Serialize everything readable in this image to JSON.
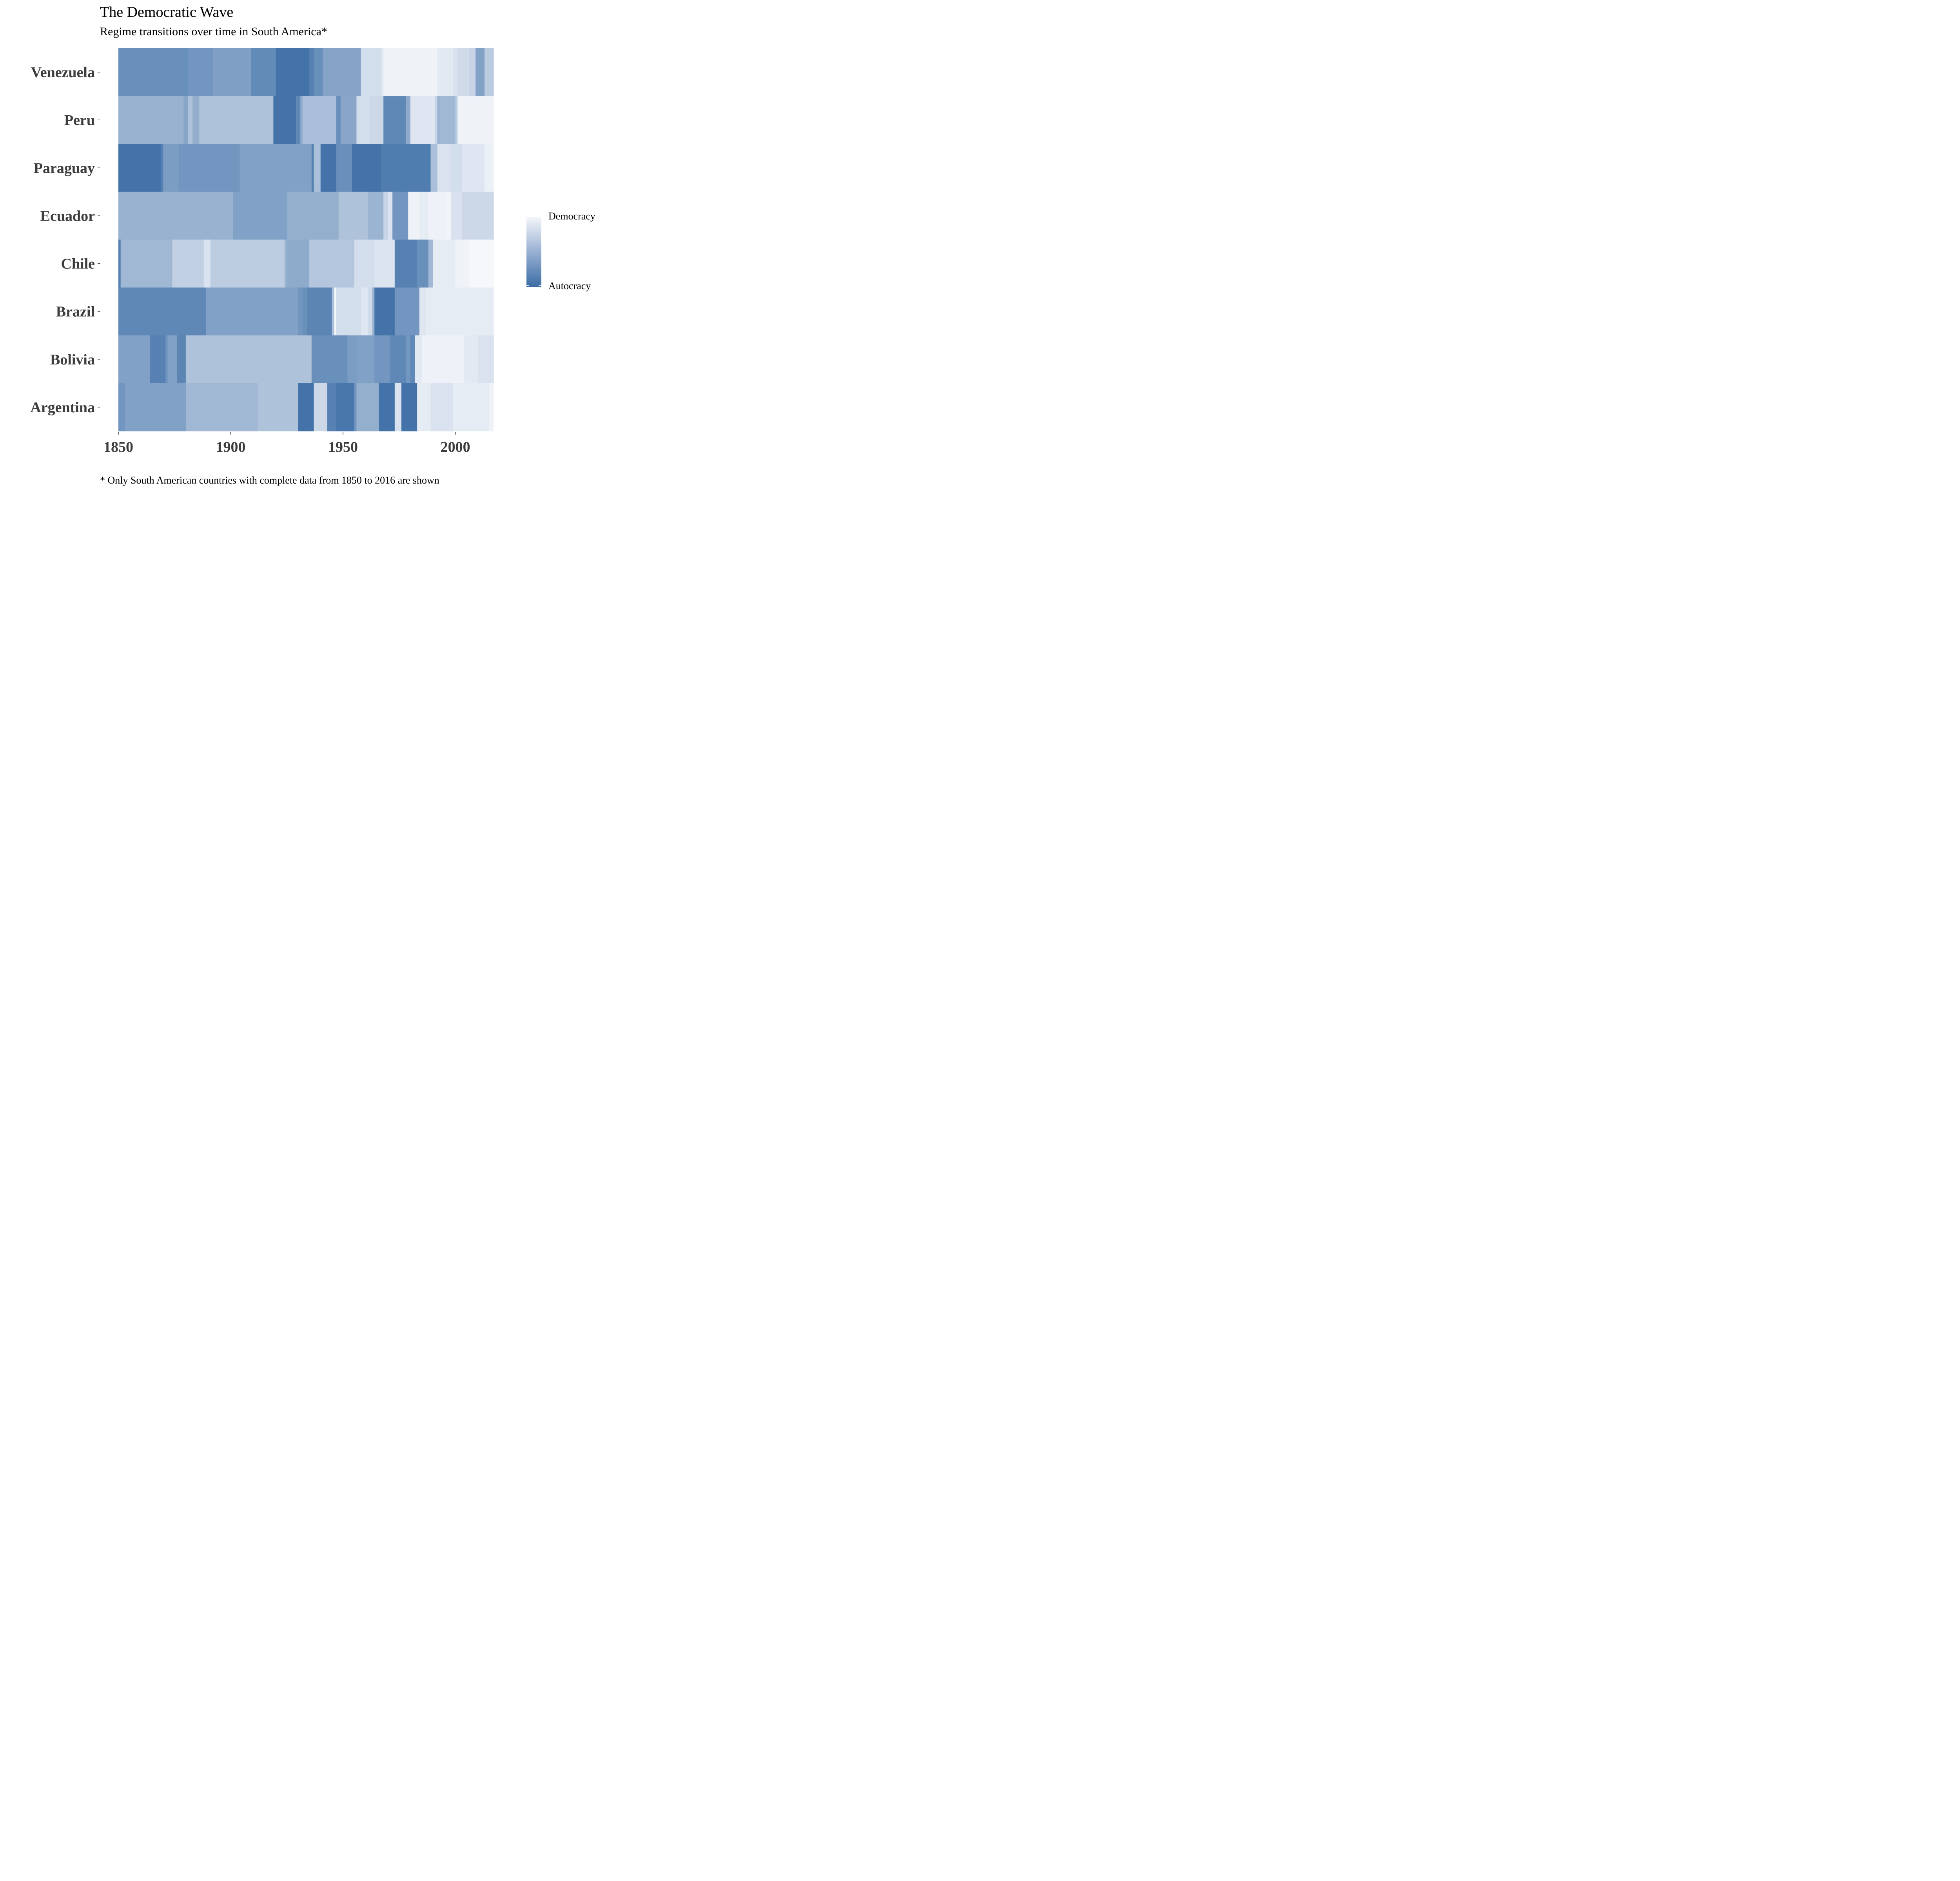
{
  "chart_data": {
    "type": "heatmap",
    "title": "The Democratic Wave",
    "subtitle": "Regime transitions over time in South America*",
    "caption": "* Only South American countries with complete data from 1850 to 2016 are shown",
    "xlabel": "",
    "ylabel": "",
    "xlim": [
      1850,
      2017
    ],
    "x_ticks": [
      1850,
      1900,
      1950,
      2000
    ],
    "grid": false,
    "legend": {
      "position": "right",
      "high_label": "Democracy",
      "low_label": "Autocracy",
      "colors": {
        "low": "#3a6ca5",
        "high": "#f5f7fb"
      }
    },
    "value_scale": "0 = Autocracy, 1 = Democracy",
    "countries": [
      "Venezuela",
      "Peru",
      "Paraguay",
      "Ecuador",
      "Chile",
      "Brazil",
      "Bolivia",
      "Argentina"
    ],
    "series": [
      {
        "name": "Venezuela",
        "segments": [
          [
            1850,
            1881,
            0.25
          ],
          [
            1881,
            1892,
            0.3
          ],
          [
            1892,
            1909,
            0.37
          ],
          [
            1909,
            1920,
            0.22
          ],
          [
            1920,
            1935,
            0.05
          ],
          [
            1935,
            1937,
            0.15
          ],
          [
            1937,
            1941,
            0.25
          ],
          [
            1941,
            1958,
            0.4
          ],
          [
            1958,
            1967,
            0.82
          ],
          [
            1967,
            1968,
            0.88
          ],
          [
            1968,
            1992,
            0.97
          ],
          [
            1992,
            1999,
            0.9
          ],
          [
            1999,
            2001,
            0.85
          ],
          [
            2001,
            2006,
            0.8
          ],
          [
            2006,
            2009,
            0.75
          ],
          [
            2009,
            2013,
            0.38
          ],
          [
            2013,
            2017,
            0.68
          ]
        ]
      },
      {
        "name": "Peru",
        "segments": [
          [
            1850,
            1879,
            0.5
          ],
          [
            1879,
            1881,
            0.42
          ],
          [
            1881,
            1883,
            0.62
          ],
          [
            1883,
            1886,
            0.48
          ],
          [
            1886,
            1919,
            0.62
          ],
          [
            1919,
            1929,
            0.05
          ],
          [
            1929,
            1931,
            0.2
          ],
          [
            1931,
            1932,
            0.45
          ],
          [
            1932,
            1947,
            0.6
          ],
          [
            1947,
            1949,
            0.25
          ],
          [
            1949,
            1956,
            0.42
          ],
          [
            1956,
            1962,
            0.82
          ],
          [
            1962,
            1963,
            0.78
          ],
          [
            1963,
            1968,
            0.78
          ],
          [
            1968,
            1978,
            0.2
          ],
          [
            1978,
            1980,
            0.45
          ],
          [
            1980,
            1991,
            0.88
          ],
          [
            1991,
            1992,
            0.75
          ],
          [
            1992,
            1993,
            0.5
          ],
          [
            1993,
            2000,
            0.55
          ],
          [
            2000,
            2001,
            0.7
          ],
          [
            2001,
            2017,
            0.97
          ]
        ]
      },
      {
        "name": "Paraguay",
        "segments": [
          [
            1850,
            1869,
            0.05
          ],
          [
            1869,
            1870,
            0.15
          ],
          [
            1870,
            1877,
            0.35
          ],
          [
            1877,
            1904,
            0.3
          ],
          [
            1904,
            1936,
            0.38
          ],
          [
            1936,
            1937,
            0.15
          ],
          [
            1937,
            1940,
            0.6
          ],
          [
            1940,
            1947,
            0.05
          ],
          [
            1947,
            1954,
            0.25
          ],
          [
            1954,
            1967,
            0.05
          ],
          [
            1967,
            1989,
            0.12
          ],
          [
            1989,
            1992,
            0.6
          ],
          [
            1992,
            1998,
            0.85
          ],
          [
            1998,
            2003,
            0.82
          ],
          [
            2003,
            2013,
            0.88
          ],
          [
            2013,
            2017,
            0.95
          ]
        ]
      },
      {
        "name": "Ecuador",
        "segments": [
          [
            1850,
            1901,
            0.5
          ],
          [
            1901,
            1925,
            0.38
          ],
          [
            1925,
            1948,
            0.48
          ],
          [
            1948,
            1961,
            0.62
          ],
          [
            1961,
            1968,
            0.52
          ],
          [
            1968,
            1970,
            0.75
          ],
          [
            1970,
            1972,
            0.85
          ],
          [
            1972,
            1979,
            0.3
          ],
          [
            1979,
            1984,
            0.97
          ],
          [
            1984,
            1988,
            0.92
          ],
          [
            1988,
            1996,
            0.96
          ],
          [
            1996,
            1998,
            0.98
          ],
          [
            1998,
            2003,
            0.85
          ],
          [
            2003,
            2017,
            0.78
          ]
        ]
      },
      {
        "name": "Chile",
        "segments": [
          [
            1850,
            1851,
            0.15
          ],
          [
            1851,
            1874,
            0.55
          ],
          [
            1874,
            1888,
            0.72
          ],
          [
            1888,
            1891,
            0.85
          ],
          [
            1891,
            1924,
            0.7
          ],
          [
            1924,
            1925,
            0.5
          ],
          [
            1925,
            1935,
            0.45
          ],
          [
            1935,
            1955,
            0.65
          ],
          [
            1955,
            1964,
            0.82
          ],
          [
            1964,
            1973,
            0.86
          ],
          [
            1973,
            1983,
            0.15
          ],
          [
            1983,
            1988,
            0.25
          ],
          [
            1988,
            1990,
            0.55
          ],
          [
            1990,
            2000,
            0.92
          ],
          [
            2000,
            2006,
            0.97
          ],
          [
            2006,
            2017,
            1.0
          ]
        ]
      },
      {
        "name": "Brazil",
        "segments": [
          [
            1850,
            1889,
            0.2
          ],
          [
            1889,
            1930,
            0.38
          ],
          [
            1930,
            1932,
            0.3
          ],
          [
            1932,
            1934,
            0.25
          ],
          [
            1934,
            1945,
            0.18
          ],
          [
            1945,
            1946,
            0.6
          ],
          [
            1946,
            1947,
            0.98
          ],
          [
            1947,
            1958,
            0.82
          ],
          [
            1958,
            1961,
            0.88
          ],
          [
            1961,
            1963,
            0.8
          ],
          [
            1963,
            1964,
            0.5
          ],
          [
            1964,
            1973,
            0.05
          ],
          [
            1973,
            1984,
            0.3
          ],
          [
            1984,
            1987,
            0.88
          ],
          [
            1987,
            2017,
            0.92
          ]
        ]
      },
      {
        "name": "Bolivia",
        "segments": [
          [
            1850,
            1864,
            0.38
          ],
          [
            1864,
            1871,
            0.15
          ],
          [
            1871,
            1872,
            0.3
          ],
          [
            1872,
            1876,
            0.38
          ],
          [
            1876,
            1880,
            0.18
          ],
          [
            1880,
            1936,
            0.62
          ],
          [
            1936,
            1952,
            0.25
          ],
          [
            1952,
            1956,
            0.35
          ],
          [
            1956,
            1964,
            0.38
          ],
          [
            1964,
            1971,
            0.3
          ],
          [
            1971,
            1978,
            0.2
          ],
          [
            1978,
            1980,
            0.3
          ],
          [
            1980,
            1982,
            0.2
          ],
          [
            1982,
            1985,
            0.9
          ],
          [
            1985,
            2004,
            0.96
          ],
          [
            2004,
            2010,
            0.9
          ],
          [
            2010,
            2017,
            0.85
          ]
        ]
      },
      {
        "name": "Argentina",
        "segments": [
          [
            1850,
            1853,
            0.3
          ],
          [
            1853,
            1880,
            0.38
          ],
          [
            1880,
            1912,
            0.55
          ],
          [
            1912,
            1930,
            0.62
          ],
          [
            1930,
            1937,
            0.05
          ],
          [
            1937,
            1943,
            0.78
          ],
          [
            1943,
            1947,
            0.15
          ],
          [
            1947,
            1955,
            0.08
          ],
          [
            1955,
            1956,
            0.3
          ],
          [
            1956,
            1966,
            0.48
          ],
          [
            1966,
            1973,
            0.05
          ],
          [
            1973,
            1976,
            0.85
          ],
          [
            1976,
            1983,
            0.05
          ],
          [
            1983,
            1989,
            0.92
          ],
          [
            1989,
            1999,
            0.85
          ],
          [
            1999,
            2015,
            0.92
          ],
          [
            2015,
            2017,
            0.97
          ]
        ]
      }
    ]
  }
}
